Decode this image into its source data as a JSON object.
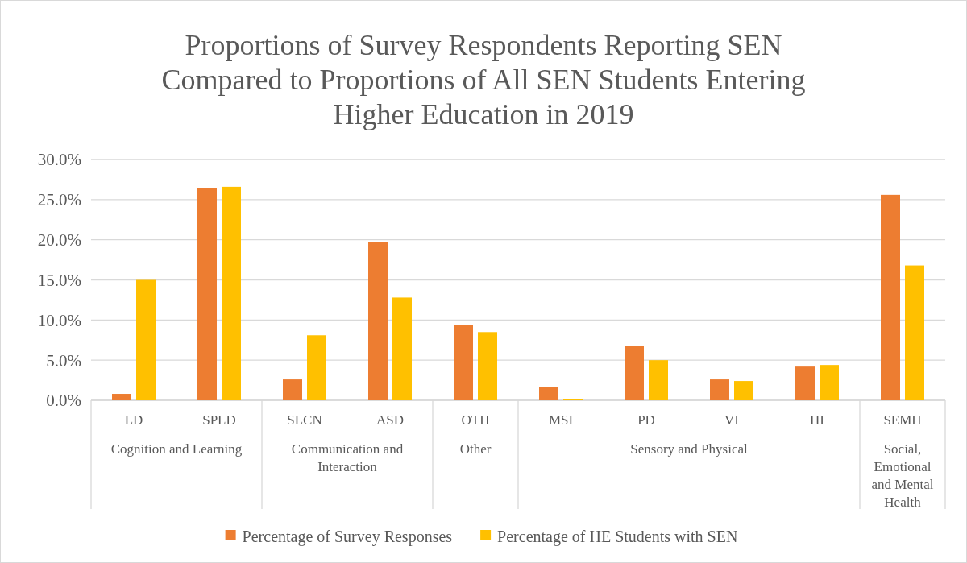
{
  "chart_data": {
    "type": "bar",
    "title": "Proportions of Survey Respondents Reporting SEN Compared to Proportions of All SEN Students Entering Higher Education in 2019",
    "categories": [
      "LD",
      "SPLD",
      "SLCN",
      "ASD",
      "OTH",
      "MSI",
      "PD",
      "VI",
      "HI",
      "SEMH"
    ],
    "series": [
      {
        "name": "Percentage of Survey Responses",
        "color": "#ed7d31",
        "values": [
          0.8,
          26.4,
          2.6,
          19.7,
          9.4,
          1.7,
          6.8,
          2.6,
          4.2,
          25.6
        ]
      },
      {
        "name": "Percentage of HE Students with SEN",
        "color": "#ffc000",
        "values": [
          15.0,
          26.6,
          8.1,
          12.8,
          8.5,
          0.1,
          5.0,
          2.4,
          4.4,
          16.8
        ]
      }
    ],
    "annotations": [
      "Cognition and Learning",
      "Communication and Interaction",
      "Other",
      "Sensory and Physical",
      "Social, Emotional and Mental Health"
    ],
    "ylim": [
      0,
      30
    ],
    "yticks": [
      {
        "value": 0,
        "label": "0.0%"
      },
      {
        "value": 5,
        "label": "5.0%"
      },
      {
        "value": 10,
        "label": "10.0%"
      },
      {
        "value": 15,
        "label": "15.0%"
      },
      {
        "value": 20,
        "label": "20.0%"
      },
      {
        "value": 25,
        "label": "25.0%"
      },
      {
        "value": 30,
        "label": "30.0%"
      }
    ],
    "grid": "y",
    "legend": "bottom"
  }
}
